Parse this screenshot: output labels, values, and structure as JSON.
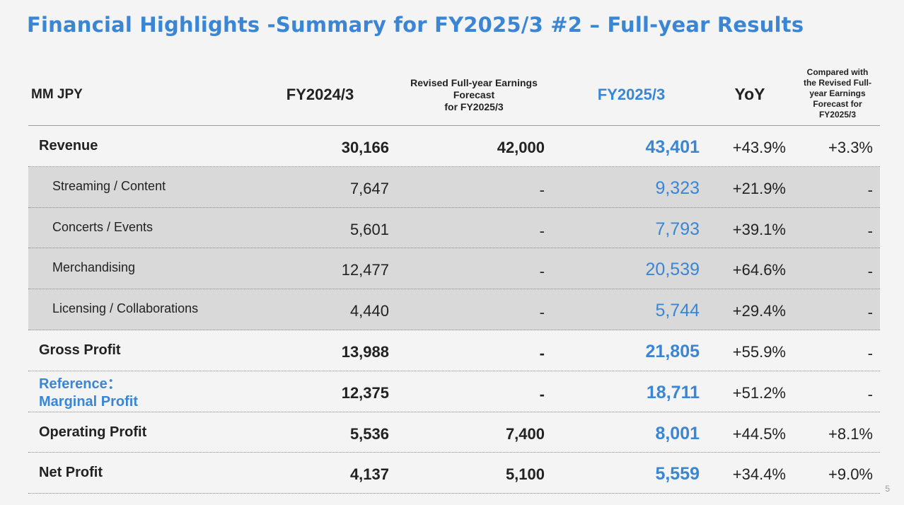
{
  "title": "Financial Highlights -Summary for FY2025/3 #2 – Full-year Results",
  "header": {
    "unit": "MM JPY",
    "fy2024": "FY2024/3",
    "forecast_lines": [
      "Revised Full-year Earnings",
      "Forecast",
      "for FY2025/3"
    ],
    "fy2025": "FY2025/3",
    "yoy": "YoY",
    "compared_lines": [
      "Compared with",
      "the Revised Full-",
      "year Earnings",
      "Forecast for",
      "FY2025/3"
    ]
  },
  "rows": [
    {
      "label_lines": [
        "Revenue"
      ],
      "fy2024": "30,166",
      "forecast": "42,000",
      "fy2025": "43,401",
      "yoy": "+43.9%",
      "compared": "+3.3%",
      "type": "main"
    },
    {
      "label_lines": [
        "Streaming / Content"
      ],
      "fy2024": "7,647",
      "forecast": "-",
      "fy2025": "9,323",
      "yoy": "+21.9%",
      "compared": "-",
      "type": "sub"
    },
    {
      "label_lines": [
        "Concerts / Events"
      ],
      "fy2024": "5,601",
      "forecast": "-",
      "fy2025": "7,793",
      "yoy": "+39.1%",
      "compared": "-",
      "type": "sub"
    },
    {
      "label_lines": [
        "Merchandising"
      ],
      "fy2024": "12,477",
      "forecast": "-",
      "fy2025": "20,539",
      "yoy": "+64.6%",
      "compared": "-",
      "type": "sub"
    },
    {
      "label_lines": [
        "Licensing / Collaborations"
      ],
      "fy2024": "4,440",
      "forecast": "-",
      "fy2025": "5,744",
      "yoy": "+29.4%",
      "compared": "-",
      "type": "sub"
    },
    {
      "label_lines": [
        "Gross Profit"
      ],
      "fy2024": "13,988",
      "forecast": "-",
      "fy2025": "21,805",
      "yoy": "+55.9%",
      "compared": "-",
      "type": "main"
    },
    {
      "label_lines": [
        "Reference：",
        "Marginal Profit"
      ],
      "fy2024": "12,375",
      "forecast": "-",
      "fy2025": "18,711",
      "yoy": "+51.2%",
      "compared": "-",
      "type": "ref"
    },
    {
      "label_lines": [
        "Operating Profit"
      ],
      "fy2024": "5,536",
      "forecast": "7,400",
      "fy2025": "8,001",
      "yoy": "+44.5%",
      "compared": "+8.1%",
      "type": "main"
    },
    {
      "label_lines": [
        "Net Profit"
      ],
      "fy2024": "4,137",
      "forecast": "5,100",
      "fy2025": "5,559",
      "yoy": "+34.4%",
      "compared": "+9.0%",
      "type": "main"
    }
  ],
  "page_number": "5",
  "colors": {
    "accent": "#3a86d4",
    "sub_row_bg": "#d9d9d9",
    "background": "#f4f4f4"
  }
}
